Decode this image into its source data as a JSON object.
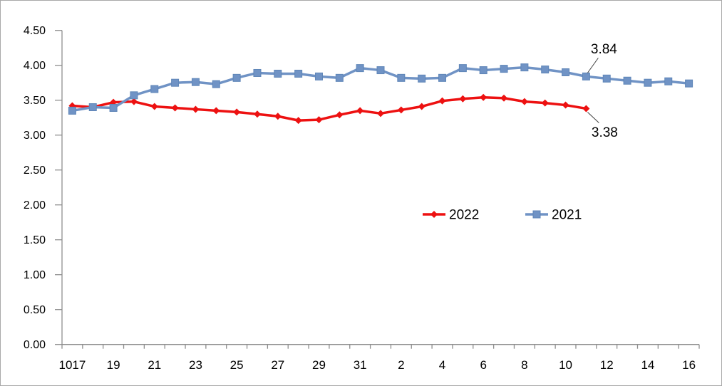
{
  "chart_data": {
    "type": "line",
    "title": "",
    "xlabel": "",
    "ylabel": "",
    "ylim": [
      0,
      4.5
    ],
    "y_tick_step": 0.5,
    "y_tick_labels": [
      "0.00",
      "0.50",
      "1.00",
      "1.50",
      "2.00",
      "2.50",
      "3.00",
      "3.50",
      "4.00",
      "4.50"
    ],
    "num_categories": 31,
    "x_tick_labels": [
      "1017",
      "19",
      "21",
      "23",
      "25",
      "27",
      "29",
      "31",
      "2",
      "4",
      "6",
      "8",
      "10",
      "12",
      "14",
      "16"
    ],
    "x_tick_label_indices": [
      0,
      2,
      4,
      6,
      8,
      10,
      12,
      14,
      16,
      18,
      20,
      22,
      24,
      26,
      28,
      30
    ],
    "grid": false,
    "legend_position": "center-middle",
    "axis_color": "#8e8e8e",
    "series": [
      {
        "name": "2022",
        "color": "#ed1111",
        "marker": "diamond",
        "values": [
          3.42,
          3.4,
          3.47,
          3.48,
          3.41,
          3.39,
          3.37,
          3.35,
          3.33,
          3.3,
          3.27,
          3.21,
          3.22,
          3.29,
          3.35,
          3.31,
          3.36,
          3.41,
          3.49,
          3.52,
          3.54,
          3.53,
          3.48,
          3.46,
          3.43,
          3.38
        ]
      },
      {
        "name": "2021",
        "color": "#7093c5",
        "marker": "square",
        "values": [
          3.35,
          3.4,
          3.39,
          3.57,
          3.66,
          3.75,
          3.76,
          3.73,
          3.82,
          3.89,
          3.88,
          3.88,
          3.84,
          3.82,
          3.96,
          3.93,
          3.82,
          3.81,
          3.82,
          3.96,
          3.93,
          3.95,
          3.97,
          3.94,
          3.9,
          3.84,
          3.81,
          3.78,
          3.75,
          3.77,
          3.74
        ]
      }
    ],
    "annotations": [
      {
        "text": "3.84",
        "series": "2021",
        "point_index": 25
      },
      {
        "text": "3.38",
        "series": "2022",
        "point_index": 25
      }
    ]
  }
}
